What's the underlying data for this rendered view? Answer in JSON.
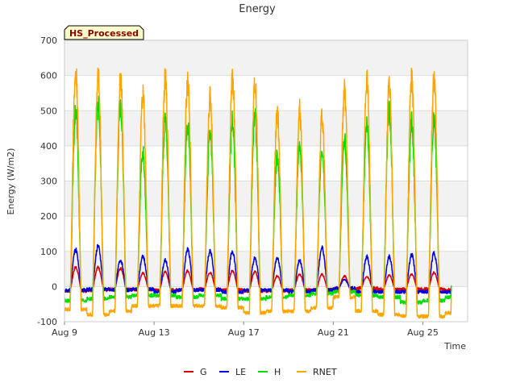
{
  "chart_data": {
    "type": "line",
    "title": "Energy",
    "xlabel": "Time",
    "ylabel": "Energy (W/m2)",
    "badge": "HS_Processed",
    "ylim": [
      -100,
      700
    ],
    "yticks": [
      -100,
      0,
      100,
      200,
      300,
      400,
      500,
      600,
      700
    ],
    "xlim_day": [
      9,
      27
    ],
    "xticks": [
      {
        "day": 9,
        "label": "Aug 9"
      },
      {
        "day": 13,
        "label": "Aug 13"
      },
      {
        "day": 17,
        "label": "Aug 17"
      },
      {
        "day": 21,
        "label": "Aug 21"
      },
      {
        "day": 25,
        "label": "Aug 25"
      }
    ],
    "grid": true,
    "legend_position": "bottom",
    "days": [
      9,
      10,
      11,
      12,
      13,
      14,
      15,
      16,
      17,
      18,
      19,
      20,
      21,
      22,
      23,
      24,
      25,
      26
    ],
    "series": [
      {
        "name": "G",
        "color": "#dd0000",
        "peak": [
          55,
          55,
          52,
          38,
          42,
          45,
          40,
          45,
          42,
          30,
          35,
          35,
          30,
          28,
          32,
          35,
          40,
          45
        ],
        "night": [
          -12,
          -10,
          -8,
          -8,
          -10,
          -10,
          -8,
          -10,
          -12,
          -12,
          -10,
          -10,
          -8,
          -5,
          -8,
          -8,
          -8,
          -10
        ]
      },
      {
        "name": "LE",
        "color": "#0000dd",
        "peak": [
          105,
          115,
          75,
          85,
          75,
          105,
          100,
          100,
          80,
          80,
          75,
          110,
          20,
          85,
          85,
          90,
          95,
          100
        ],
        "night": [
          -10,
          -8,
          -10,
          -8,
          -15,
          -10,
          -10,
          -15,
          -10,
          -10,
          -15,
          -10,
          -5,
          -15,
          -15,
          -15,
          -15,
          -15
        ]
      },
      {
        "name": "H",
        "color": "#00dd00",
        "peak": [
          500,
          520,
          520,
          385,
          470,
          460,
          440,
          470,
          490,
          370,
          400,
          390,
          420,
          460,
          500,
          470,
          470,
          470
        ],
        "night": [
          -40,
          -35,
          -30,
          -25,
          -25,
          -30,
          -25,
          -35,
          -35,
          -30,
          -25,
          -20,
          -15,
          -25,
          -30,
          -45,
          -40,
          -30
        ]
      },
      {
        "name": "RNET",
        "color": "#ffa500",
        "peak": [
          620,
          600,
          595,
          540,
          585,
          585,
          540,
          590,
          590,
          490,
          500,
          480,
          555,
          590,
          570,
          595,
          585,
          585
        ],
        "night": [
          -65,
          -80,
          -70,
          -55,
          -55,
          -55,
          -55,
          -60,
          -75,
          -70,
          -70,
          -60,
          -30,
          -70,
          -80,
          -85,
          -85,
          -75
        ]
      }
    ]
  }
}
